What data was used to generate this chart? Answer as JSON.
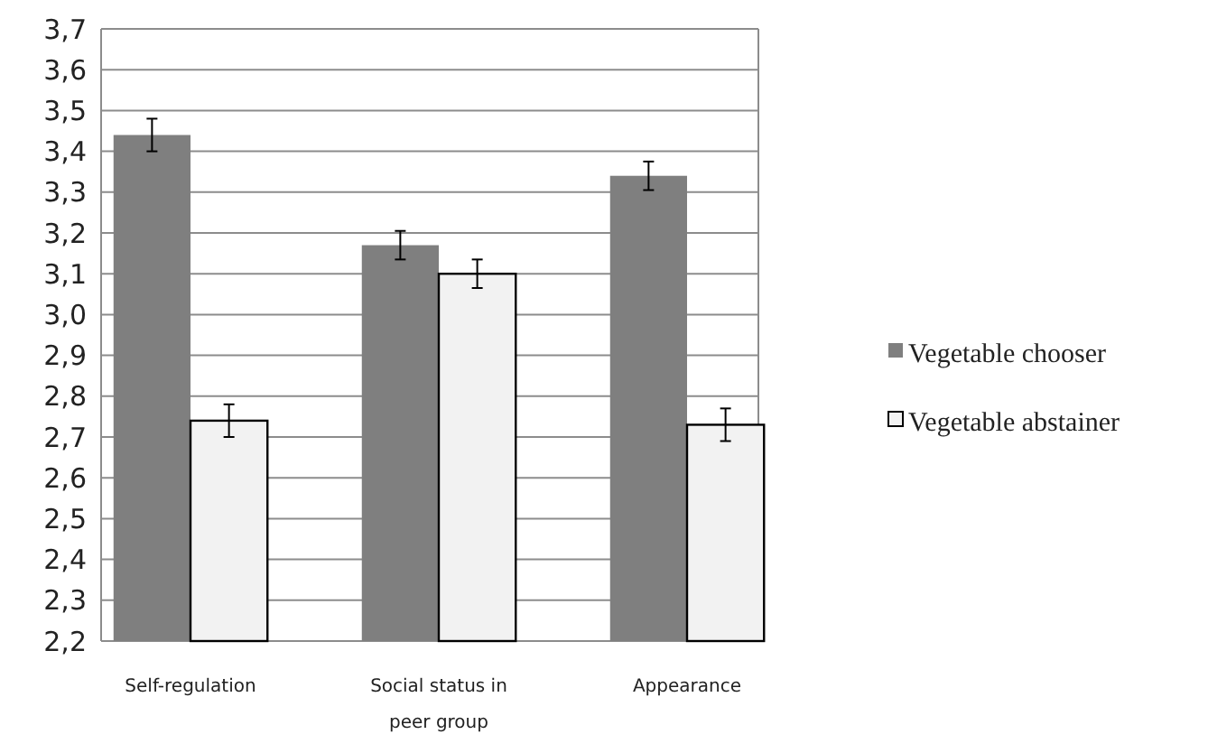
{
  "chart_data": {
    "type": "bar",
    "categories": [
      "Self-regulation",
      "Social status in peer group",
      "Appearance"
    ],
    "series": [
      {
        "name": "Vegetable chooser",
        "color": "#7f7f7f",
        "values": [
          3.44,
          3.17,
          3.34
        ],
        "errors": [
          0.04,
          0.035,
          0.035
        ]
      },
      {
        "name": "Vegetable abstainer",
        "color": "#f2f2f2",
        "values": [
          2.74,
          3.1,
          2.73
        ],
        "errors": [
          0.04,
          0.035,
          0.04
        ]
      }
    ],
    "ylim": [
      2.2,
      3.7
    ],
    "yticks": [
      {
        "value": 2.2,
        "label": "2,2"
      },
      {
        "value": 2.3,
        "label": "2,3"
      },
      {
        "value": 2.4,
        "label": "2,4"
      },
      {
        "value": 2.5,
        "label": "2,5"
      },
      {
        "value": 2.6,
        "label": "2,6"
      },
      {
        "value": 2.7,
        "label": "2,7"
      },
      {
        "value": 2.8,
        "label": "2,8"
      },
      {
        "value": 2.9,
        "label": "2,9"
      },
      {
        "value": 3.0,
        "label": "3,0"
      },
      {
        "value": 3.1,
        "label": "3,1"
      },
      {
        "value": 3.2,
        "label": "3,2"
      },
      {
        "value": 3.3,
        "label": "3,3"
      },
      {
        "value": 3.4,
        "label": "3,4"
      },
      {
        "value": 3.5,
        "label": "3,5"
      },
      {
        "value": 3.6,
        "label": "3,6"
      },
      {
        "value": 3.7,
        "label": "3,7"
      }
    ],
    "grid": "y",
    "legend": "right"
  }
}
